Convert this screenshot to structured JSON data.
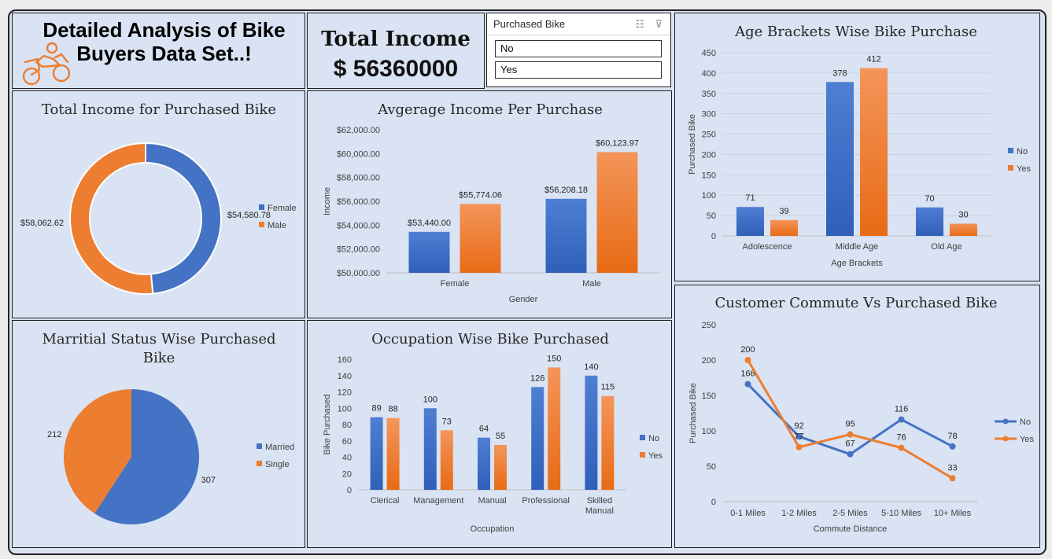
{
  "header": {
    "title": "Detailed Analysis of Bike Buyers Data Set..!"
  },
  "kpi": {
    "label": "Total Income",
    "value": "$ 56360000"
  },
  "slicer": {
    "title": "Purchased Bike",
    "options": [
      "No",
      "Yes"
    ]
  },
  "colors": {
    "blue": "#4472c4",
    "orange": "#ed7d31",
    "panel_bg": "#dae3f3"
  },
  "icons": [
    "motorbike-rider-icon",
    "multi-select-icon",
    "clear-filter-icon"
  ],
  "chart_data": [
    {
      "id": "income_donut",
      "type": "pie",
      "title": "Total Income for Purchased Bike",
      "categories": [
        "Female",
        "Male"
      ],
      "values": [
        54580.78,
        58062.62
      ],
      "value_labels": [
        "$54,580.78",
        "$58,062.62"
      ],
      "legend": "right"
    },
    {
      "id": "avg_income",
      "type": "bar",
      "title": "Avgerage Income Per Purchase",
      "categories": [
        "Female",
        "Male"
      ],
      "series": [
        {
          "values": [
            53440.0,
            56208.18
          ],
          "labels": [
            "$53,440.00",
            "$56,208.18"
          ]
        },
        {
          "values": [
            55774.06,
            60123.97
          ],
          "labels": [
            "$55,774.06",
            "$60,123.97"
          ]
        }
      ],
      "xlabel": "Gender",
      "ylabel": "Income",
      "ylim": [
        50000,
        62000
      ],
      "yticks": [
        "$50,000.00",
        "$52,000.00",
        "$54,000.00",
        "$56,000.00",
        "$58,000.00",
        "$60,000.00",
        "$62,000.00"
      ]
    },
    {
      "id": "age_brackets",
      "type": "bar",
      "title": "Age Brackets Wise Bike Purchase",
      "categories": [
        "Adolescence",
        "Middle Age",
        "Old Age"
      ],
      "series": [
        {
          "name": "No",
          "values": [
            71,
            378,
            70
          ]
        },
        {
          "name": "Yes",
          "values": [
            39,
            412,
            30
          ]
        }
      ],
      "xlabel": "Age Brackets",
      "ylabel": "Purchased Bike",
      "ylim": [
        0,
        450
      ],
      "legend": "right",
      "grid": true
    },
    {
      "id": "marital",
      "type": "pie",
      "title": "Marritial Status Wise Purchased Bike",
      "categories": [
        "Married",
        "Single"
      ],
      "values": [
        307,
        212
      ],
      "legend": "right"
    },
    {
      "id": "occupation",
      "type": "bar",
      "title": "Occupation Wise Bike Purchased",
      "categories": [
        "Clerical",
        "Management",
        "Manual",
        "Professional",
        "Skilled Manual"
      ],
      "series": [
        {
          "name": "No",
          "values": [
            89,
            100,
            64,
            126,
            140
          ]
        },
        {
          "name": "Yes",
          "values": [
            88,
            73,
            55,
            150,
            115
          ]
        }
      ],
      "xlabel": "Occupation",
      "ylabel": "Bike Purchased",
      "ylim": [
        0,
        160
      ],
      "legend": "right"
    },
    {
      "id": "commute",
      "type": "line",
      "title": "Customer Commute Vs Purchased Bike",
      "categories": [
        "0-1 Miles",
        "1-2 Miles",
        "2-5 Miles",
        "5-10 Miles",
        "10+ Miles"
      ],
      "series": [
        {
          "name": "No",
          "values": [
            166,
            92,
            67,
            116,
            78
          ]
        },
        {
          "name": "Yes",
          "values": [
            200,
            77,
            95,
            76,
            33
          ]
        }
      ],
      "xlabel": "Commute Distance",
      "ylabel": "Purchased Bike",
      "ylim": [
        0,
        250
      ],
      "legend": "right"
    }
  ]
}
